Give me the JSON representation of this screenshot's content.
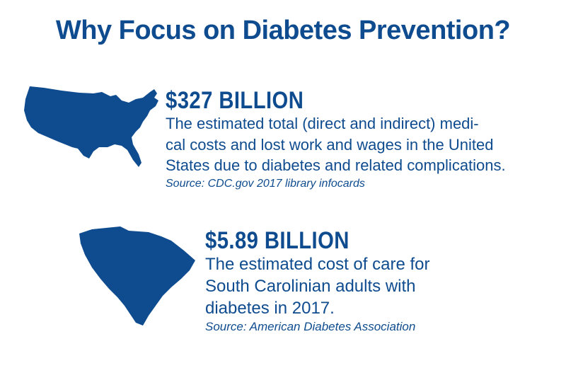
{
  "title": "Why Focus on Diabetes Prevention?",
  "colors": {
    "primary": "#0f4c8f",
    "background": "#ffffff"
  },
  "facts": [
    {
      "icon": "usa-map-icon",
      "amount": "$327 BILLION",
      "description_lines": [
        "The estimated total (direct and indirect) medi-",
        "cal costs and lost work and wages in the United",
        "States due to diabetes and related complications."
      ],
      "source": "Source: CDC.gov 2017 library infocards"
    },
    {
      "icon": "south-carolina-map-icon",
      "amount": "$5.89 BILLION",
      "description_lines": [
        "The estimated cost of care for",
        "South Carolinian adults with",
        "diabetes in 2017."
      ],
      "source": "Source: American Diabetes Association"
    }
  ]
}
